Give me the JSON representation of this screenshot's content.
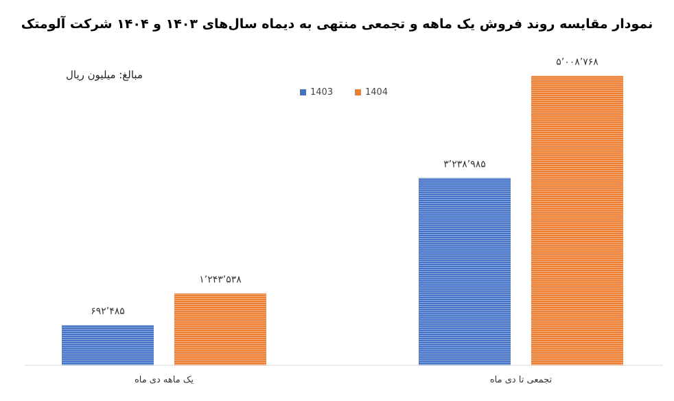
{
  "chart_data": {
    "type": "bar",
    "title": "نمودار مقایسه روند فروش یک ماهه و تجمعی منتهی به دیماه سال‌های ۱۴۰۳ و ۱۴۰۴ شرکت آلومتک",
    "unit_note": "مبالغ: میلیون ریال",
    "categories": [
      "یک ماهه دی ماه",
      "تجمعی تا دی ماه"
    ],
    "series": [
      {
        "name": "1403",
        "color": "#4472C4",
        "values": [
          692485,
          3238985
        ],
        "value_labels": [
          "۶۹۲٬۴۸۵",
          "۳٬۲۳۸٬۹۸۵"
        ]
      },
      {
        "name": "1404",
        "color": "#ED7D31",
        "values": [
          1243538,
          5008768
        ],
        "value_labels": [
          "۱٬۲۴۳٬۵۳۸",
          "۵٬۰۰۸٬۷۶۸"
        ]
      }
    ],
    "ylim": [
      0,
      5500000
    ],
    "grid": false,
    "legend_position": "top-center"
  }
}
